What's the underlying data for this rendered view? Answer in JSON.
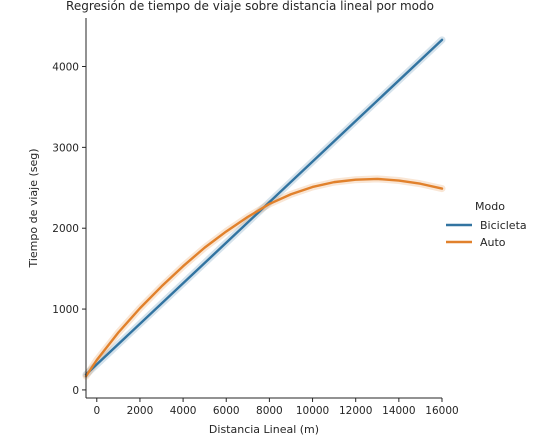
{
  "chart_data": {
    "type": "line",
    "title": "Regresión de tiempo de viaje sobre distancia lineal por modo",
    "xlabel": "Distancia Lineal (m)",
    "ylabel": "Tiempo de viaje (seg)",
    "xlim": [
      -500,
      16000
    ],
    "ylim": [
      -100,
      4600
    ],
    "xticks": [
      0,
      2000,
      4000,
      6000,
      8000,
      10000,
      12000,
      14000,
      16000
    ],
    "xtick_labels": [
      "0",
      "2000",
      "4000",
      "6000",
      "8000",
      "10000",
      "12000",
      "14000",
      "16000"
    ],
    "yticks": [
      0,
      1000,
      2000,
      3000,
      4000
    ],
    "ytick_labels": [
      "0",
      "1000",
      "2000",
      "3000",
      "4000"
    ],
    "grid": false,
    "legend": {
      "title": "Modo",
      "placement": "right"
    },
    "series": [
      {
        "name": "Bicicleta",
        "color": "#3274a1",
        "x": [
          -500,
          16000
        ],
        "y": [
          190,
          4330
        ]
      },
      {
        "name": "Auto",
        "color": "#e1812c",
        "x": [
          -500,
          0,
          1000,
          2000,
          3000,
          4000,
          5000,
          6000,
          7000,
          8000,
          9000,
          10000,
          11000,
          12000,
          13000,
          14000,
          15000,
          16000
        ],
        "y": [
          170,
          370,
          710,
          1010,
          1280,
          1530,
          1760,
          1960,
          2140,
          2300,
          2420,
          2510,
          2570,
          2600,
          2610,
          2590,
          2550,
          2490
        ]
      }
    ]
  }
}
